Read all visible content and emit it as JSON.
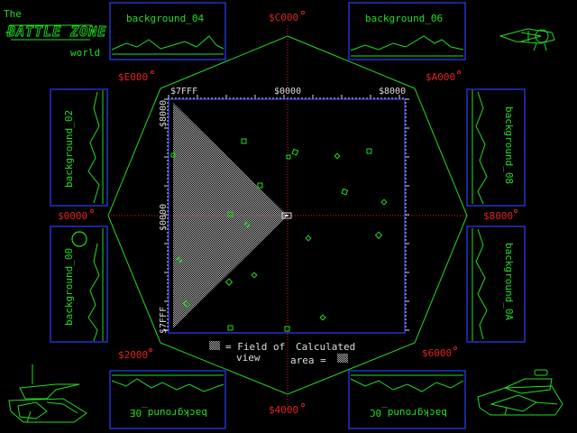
{
  "title": {
    "line1": "The",
    "logo": "BATTLE ZONE",
    "line3": "world"
  },
  "hex_labels": {
    "top": "$C000",
    "upper_left": "$E000",
    "upper_right": "$A000",
    "left": "$0000",
    "right": "$8000",
    "lower_left": "$2000",
    "lower_right": "$6000",
    "bottom": "$4000"
  },
  "backgrounds": {
    "b04": "background_04",
    "b06": "background_06",
    "b02": "background_02",
    "b08": "background_08",
    "b00": "background_00",
    "b0A": "background_0A",
    "b0E": "background_0E",
    "b0C": "background_0C"
  },
  "map": {
    "top_left": "$7FFF",
    "top_center": "$0000",
    "top_right": "$8000",
    "left_top": "$8000",
    "left_center": "$0000",
    "left_bottom": "$7FFF"
  },
  "legend": {
    "fov_label": "= Field of",
    "fov_label2": "view",
    "calc_label": "Calculated",
    "calc_label2": "area ="
  },
  "colors": {
    "vector_green": "#22dd22",
    "axis_red": "#e02222",
    "map_border_blue": "#2233cc",
    "label_white": "#dddddd"
  },
  "icons": [
    "player-tank-icon",
    "enemy-tank-icon",
    "saucer-icon",
    "moon-icon",
    "obstacle-icon"
  ]
}
